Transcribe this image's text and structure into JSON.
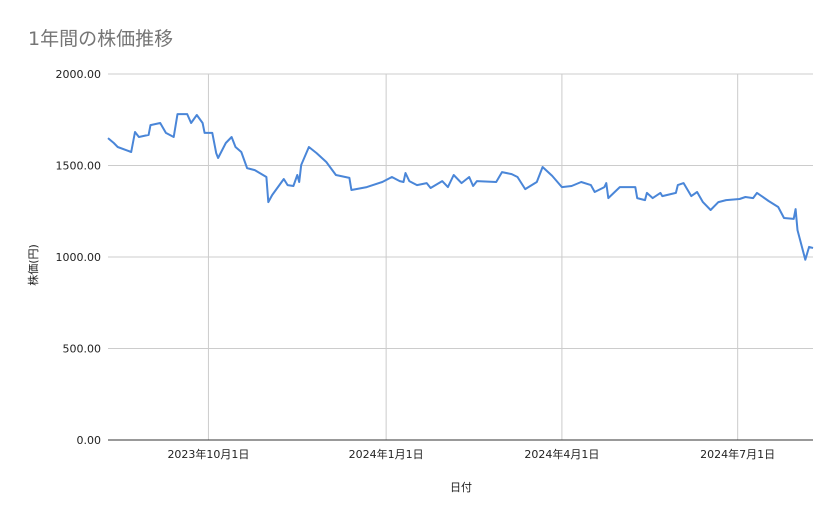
{
  "chart_data": {
    "type": "line",
    "title": "1年間の株価推移",
    "xlabel": "日付",
    "ylabel": "株価(円)",
    "ylim": [
      0,
      2000
    ],
    "xlim": [
      "2023-08-10",
      "2024-08-09"
    ],
    "grid": true,
    "legend": "none",
    "line_color": "#4a86d8",
    "y_ticks": [
      {
        "value": 0,
        "label": "0.00"
      },
      {
        "value": 500,
        "label": "500.00"
      },
      {
        "value": 1000,
        "label": "1000.00"
      },
      {
        "value": 1500,
        "label": "1500.00"
      },
      {
        "value": 2000,
        "label": "2000.00"
      }
    ],
    "x_ticks": [
      {
        "date": "2023-10-01",
        "label": "2023年10月1日"
      },
      {
        "date": "2024-01-01",
        "label": "2024年1月1日"
      },
      {
        "date": "2024-04-01",
        "label": "2024年4月1日"
      },
      {
        "date": "2024-07-01",
        "label": "2024年7月1日"
      }
    ],
    "series": [
      {
        "points": [
          [
            "2023-08-10",
            1650
          ],
          [
            "2023-08-13",
            1623
          ],
          [
            "2023-08-15",
            1601
          ],
          [
            "2023-08-22",
            1574
          ],
          [
            "2023-08-24",
            1683
          ],
          [
            "2023-08-26",
            1656
          ],
          [
            "2023-08-31",
            1667
          ],
          [
            "2023-09-01",
            1721
          ],
          [
            "2023-09-06",
            1732
          ],
          [
            "2023-09-09",
            1678
          ],
          [
            "2023-09-13",
            1656
          ],
          [
            "2023-09-15",
            1781
          ],
          [
            "2023-09-20",
            1781
          ],
          [
            "2023-09-22",
            1732
          ],
          [
            "2023-09-25",
            1776
          ],
          [
            "2023-09-28",
            1732
          ],
          [
            "2023-09-29",
            1678
          ],
          [
            "2023-10-03",
            1678
          ],
          [
            "2023-10-05",
            1568
          ],
          [
            "2023-10-06",
            1541
          ],
          [
            "2023-10-10",
            1623
          ],
          [
            "2023-10-13",
            1656
          ],
          [
            "2023-10-15",
            1601
          ],
          [
            "2023-10-18",
            1574
          ],
          [
            "2023-10-21",
            1486
          ],
          [
            "2023-10-25",
            1475
          ],
          [
            "2023-10-31",
            1437
          ],
          [
            "2023-11-01",
            1300
          ],
          [
            "2023-11-03",
            1339
          ],
          [
            "2023-11-09",
            1426
          ],
          [
            "2023-11-11",
            1393
          ],
          [
            "2023-11-14",
            1388
          ],
          [
            "2023-11-16",
            1448
          ],
          [
            "2023-11-17",
            1410
          ],
          [
            "2023-11-18",
            1503
          ],
          [
            "2023-11-22",
            1601
          ],
          [
            "2023-11-26",
            1568
          ],
          [
            "2023-12-01",
            1519
          ],
          [
            "2023-12-06",
            1448
          ],
          [
            "2023-12-13",
            1432
          ],
          [
            "2023-12-14",
            1366
          ],
          [
            "2023-12-22",
            1382
          ],
          [
            "2023-12-30",
            1410
          ],
          [
            "2024-01-04",
            1437
          ],
          [
            "2024-01-08",
            1415
          ],
          [
            "2024-01-10",
            1410
          ],
          [
            "2024-01-11",
            1459
          ],
          [
            "2024-01-13",
            1415
          ],
          [
            "2024-01-17",
            1393
          ],
          [
            "2024-01-22",
            1404
          ],
          [
            "2024-01-24",
            1377
          ],
          [
            "2024-01-30",
            1415
          ],
          [
            "2024-02-02",
            1382
          ],
          [
            "2024-02-05",
            1448
          ],
          [
            "2024-02-09",
            1404
          ],
          [
            "2024-02-13",
            1437
          ],
          [
            "2024-02-15",
            1388
          ],
          [
            "2024-02-17",
            1415
          ],
          [
            "2024-02-27",
            1410
          ],
          [
            "2024-03-01",
            1464
          ],
          [
            "2024-03-06",
            1453
          ],
          [
            "2024-03-09",
            1437
          ],
          [
            "2024-03-13",
            1371
          ],
          [
            "2024-03-19",
            1410
          ],
          [
            "2024-03-22",
            1492
          ],
          [
            "2024-03-27",
            1443
          ],
          [
            "2024-04-01",
            1382
          ],
          [
            "2024-04-06",
            1388
          ],
          [
            "2024-04-11",
            1410
          ],
          [
            "2024-04-16",
            1393
          ],
          [
            "2024-04-18",
            1355
          ],
          [
            "2024-04-23",
            1382
          ],
          [
            "2024-04-24",
            1404
          ],
          [
            "2024-04-25",
            1322
          ],
          [
            "2024-05-01",
            1382
          ],
          [
            "2024-05-09",
            1382
          ],
          [
            "2024-05-10",
            1322
          ],
          [
            "2024-05-14",
            1311
          ],
          [
            "2024-05-15",
            1350
          ],
          [
            "2024-05-18",
            1322
          ],
          [
            "2024-05-22",
            1350
          ],
          [
            "2024-05-23",
            1333
          ],
          [
            "2024-05-30",
            1350
          ],
          [
            "2024-05-31",
            1393
          ],
          [
            "2024-06-03",
            1404
          ],
          [
            "2024-06-07",
            1333
          ],
          [
            "2024-06-10",
            1355
          ],
          [
            "2024-06-13",
            1300
          ],
          [
            "2024-06-17",
            1257
          ],
          [
            "2024-06-21",
            1300
          ],
          [
            "2024-06-25",
            1311
          ],
          [
            "2024-07-02",
            1317
          ],
          [
            "2024-07-05",
            1328
          ],
          [
            "2024-07-09",
            1322
          ],
          [
            "2024-07-11",
            1350
          ],
          [
            "2024-07-17",
            1306
          ],
          [
            "2024-07-22",
            1273
          ],
          [
            "2024-07-25",
            1213
          ],
          [
            "2024-07-30",
            1208
          ],
          [
            "2024-07-31",
            1262
          ],
          [
            "2024-08-01",
            1147
          ],
          [
            "2024-08-05",
            985
          ],
          [
            "2024-08-07",
            1055
          ],
          [
            "2024-08-09",
            1049
          ]
        ]
      }
    ]
  }
}
